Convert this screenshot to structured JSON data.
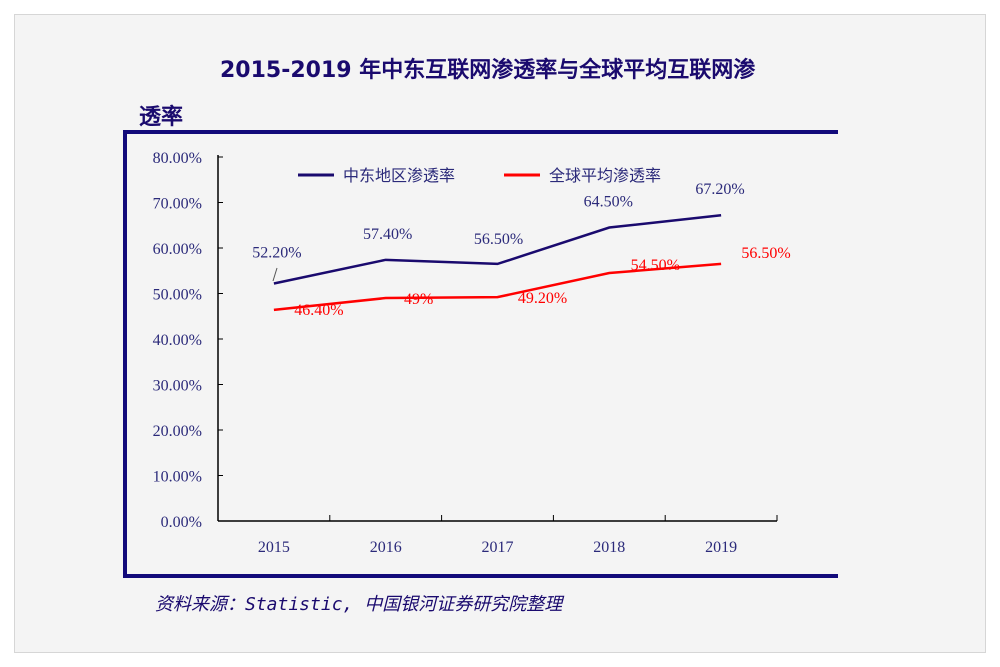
{
  "chart_data": {
    "type": "line",
    "title": "2015-2019 年中东互联网渗透率与全球平均互联网渗",
    "title_line2": "透率",
    "categories": [
      "2015",
      "2016",
      "2017",
      "2018",
      "2019"
    ],
    "series": [
      {
        "name": "中东地区渗透率",
        "color": "#1a0a6e",
        "values": [
          52.2,
          57.4,
          56.5,
          64.5,
          67.2
        ],
        "labels": [
          "52.20%",
          "57.40%",
          "56.50%",
          "64.50%",
          "67.20%"
        ]
      },
      {
        "name": "全球平均渗透率",
        "color": "#ff0000",
        "values": [
          46.4,
          49.0,
          49.2,
          54.5,
          56.5
        ],
        "labels": [
          "46.40%",
          "49%",
          "49.20%",
          "54.50%",
          "56.50%"
        ]
      }
    ],
    "yticks": [
      "0.00%",
      "10.00%",
      "20.00%",
      "30.00%",
      "40.00%",
      "50.00%",
      "60.00%",
      "70.00%",
      "80.00%"
    ],
    "ylim": [
      0,
      80
    ],
    "xlabel": "",
    "ylabel": "",
    "legend": "top",
    "grid": false
  },
  "source": "资料来源：Statistic, 中国银河证券研究院整理"
}
